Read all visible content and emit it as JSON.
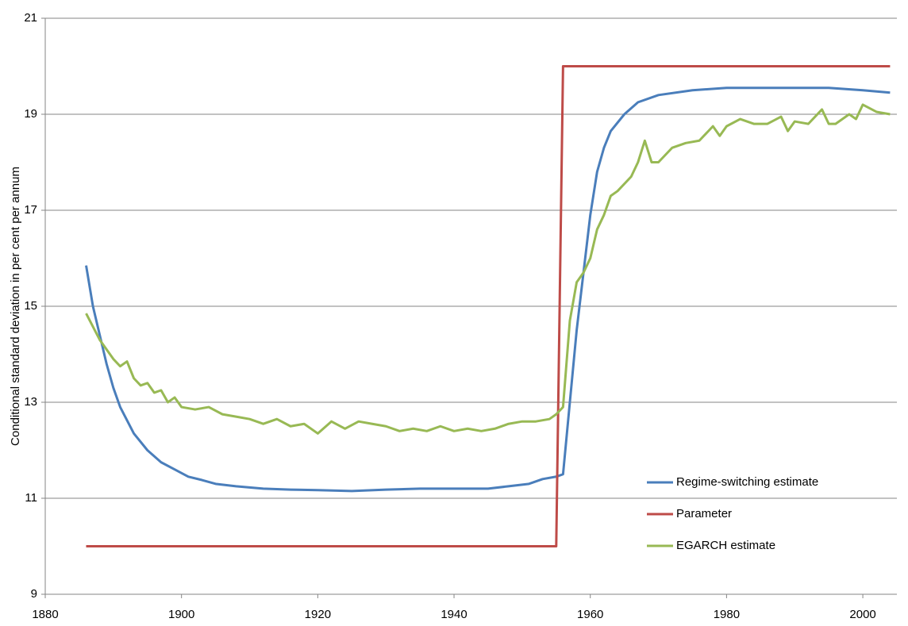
{
  "chart_data": {
    "type": "line",
    "y_label": "Conditional standard deviation in per cent per annum",
    "xlim": [
      1880,
      2005
    ],
    "xticks": [
      1880,
      1900,
      1920,
      1940,
      1960,
      1980,
      2000
    ],
    "ylim": [
      9,
      21
    ],
    "yticks": [
      9,
      11,
      13,
      15,
      17,
      19,
      21
    ],
    "grid": true,
    "legend": "lower-right",
    "series": [
      {
        "name": "Regime-switching estimate",
        "color": "#4a7ebb",
        "x": [
          1886,
          1887,
          1888,
          1889,
          1890,
          1891,
          1893,
          1895,
          1897,
          1899,
          1901,
          1903,
          1905,
          1908,
          1912,
          1916,
          1920,
          1925,
          1930,
          1935,
          1940,
          1945,
          1948,
          1951,
          1953,
          1955,
          1956,
          1957,
          1958,
          1959,
          1960,
          1961,
          1962,
          1963,
          1965,
          1967,
          1970,
          1975,
          1980,
          1990,
          1995,
          2000,
          2004
        ],
        "values": [
          15.85,
          15.0,
          14.4,
          13.8,
          13.3,
          12.9,
          12.35,
          12.0,
          11.75,
          11.6,
          11.45,
          11.38,
          11.3,
          11.25,
          11.2,
          11.18,
          11.17,
          11.15,
          11.18,
          11.2,
          11.2,
          11.2,
          11.25,
          11.3,
          11.4,
          11.45,
          11.5,
          13.0,
          14.5,
          15.7,
          16.9,
          17.8,
          18.3,
          18.65,
          19.0,
          19.25,
          19.4,
          19.5,
          19.55,
          19.55,
          19.55,
          19.5,
          19.45
        ]
      },
      {
        "name": "Parameter",
        "color": "#be4b48",
        "x": [
          1886,
          1955,
          1956,
          2004
        ],
        "values": [
          10,
          10,
          20,
          20
        ]
      },
      {
        "name": "EGARCH estimate",
        "color": "#98b954",
        "x": [
          1886,
          1888,
          1890,
          1891,
          1892,
          1893,
          1894,
          1895,
          1896,
          1897,
          1898,
          1899,
          1900,
          1902,
          1904,
          1906,
          1908,
          1910,
          1912,
          1914,
          1916,
          1918,
          1920,
          1922,
          1924,
          1926,
          1928,
          1930,
          1932,
          1934,
          1936,
          1938,
          1940,
          1942,
          1944,
          1946,
          1948,
          1950,
          1952,
          1954,
          1955,
          1956,
          1957,
          1958,
          1959,
          1960,
          1961,
          1962,
          1963,
          1964,
          1966,
          1967,
          1968,
          1969,
          1970,
          1972,
          1974,
          1976,
          1978,
          1979,
          1980,
          1982,
          1984,
          1986,
          1988,
          1989,
          1990,
          1992,
          1994,
          1995,
          1996,
          1998,
          1999,
          2000,
          2002,
          2004
        ],
        "values": [
          14.85,
          14.3,
          13.9,
          13.75,
          13.85,
          13.5,
          13.35,
          13.4,
          13.2,
          13.25,
          13.0,
          13.1,
          12.9,
          12.85,
          12.9,
          12.75,
          12.7,
          12.65,
          12.55,
          12.65,
          12.5,
          12.55,
          12.35,
          12.6,
          12.45,
          12.6,
          12.55,
          12.5,
          12.4,
          12.45,
          12.4,
          12.5,
          12.4,
          12.45,
          12.4,
          12.45,
          12.55,
          12.6,
          12.6,
          12.65,
          12.75,
          12.9,
          14.7,
          15.5,
          15.7,
          16.0,
          16.6,
          16.9,
          17.3,
          17.4,
          17.7,
          18.0,
          18.45,
          18.0,
          18.0,
          18.3,
          18.4,
          18.45,
          18.75,
          18.55,
          18.75,
          18.9,
          18.8,
          18.8,
          18.95,
          18.65,
          18.85,
          18.8,
          19.1,
          18.8,
          18.8,
          19.0,
          18.9,
          19.2,
          19.05,
          19.0
        ]
      }
    ]
  }
}
